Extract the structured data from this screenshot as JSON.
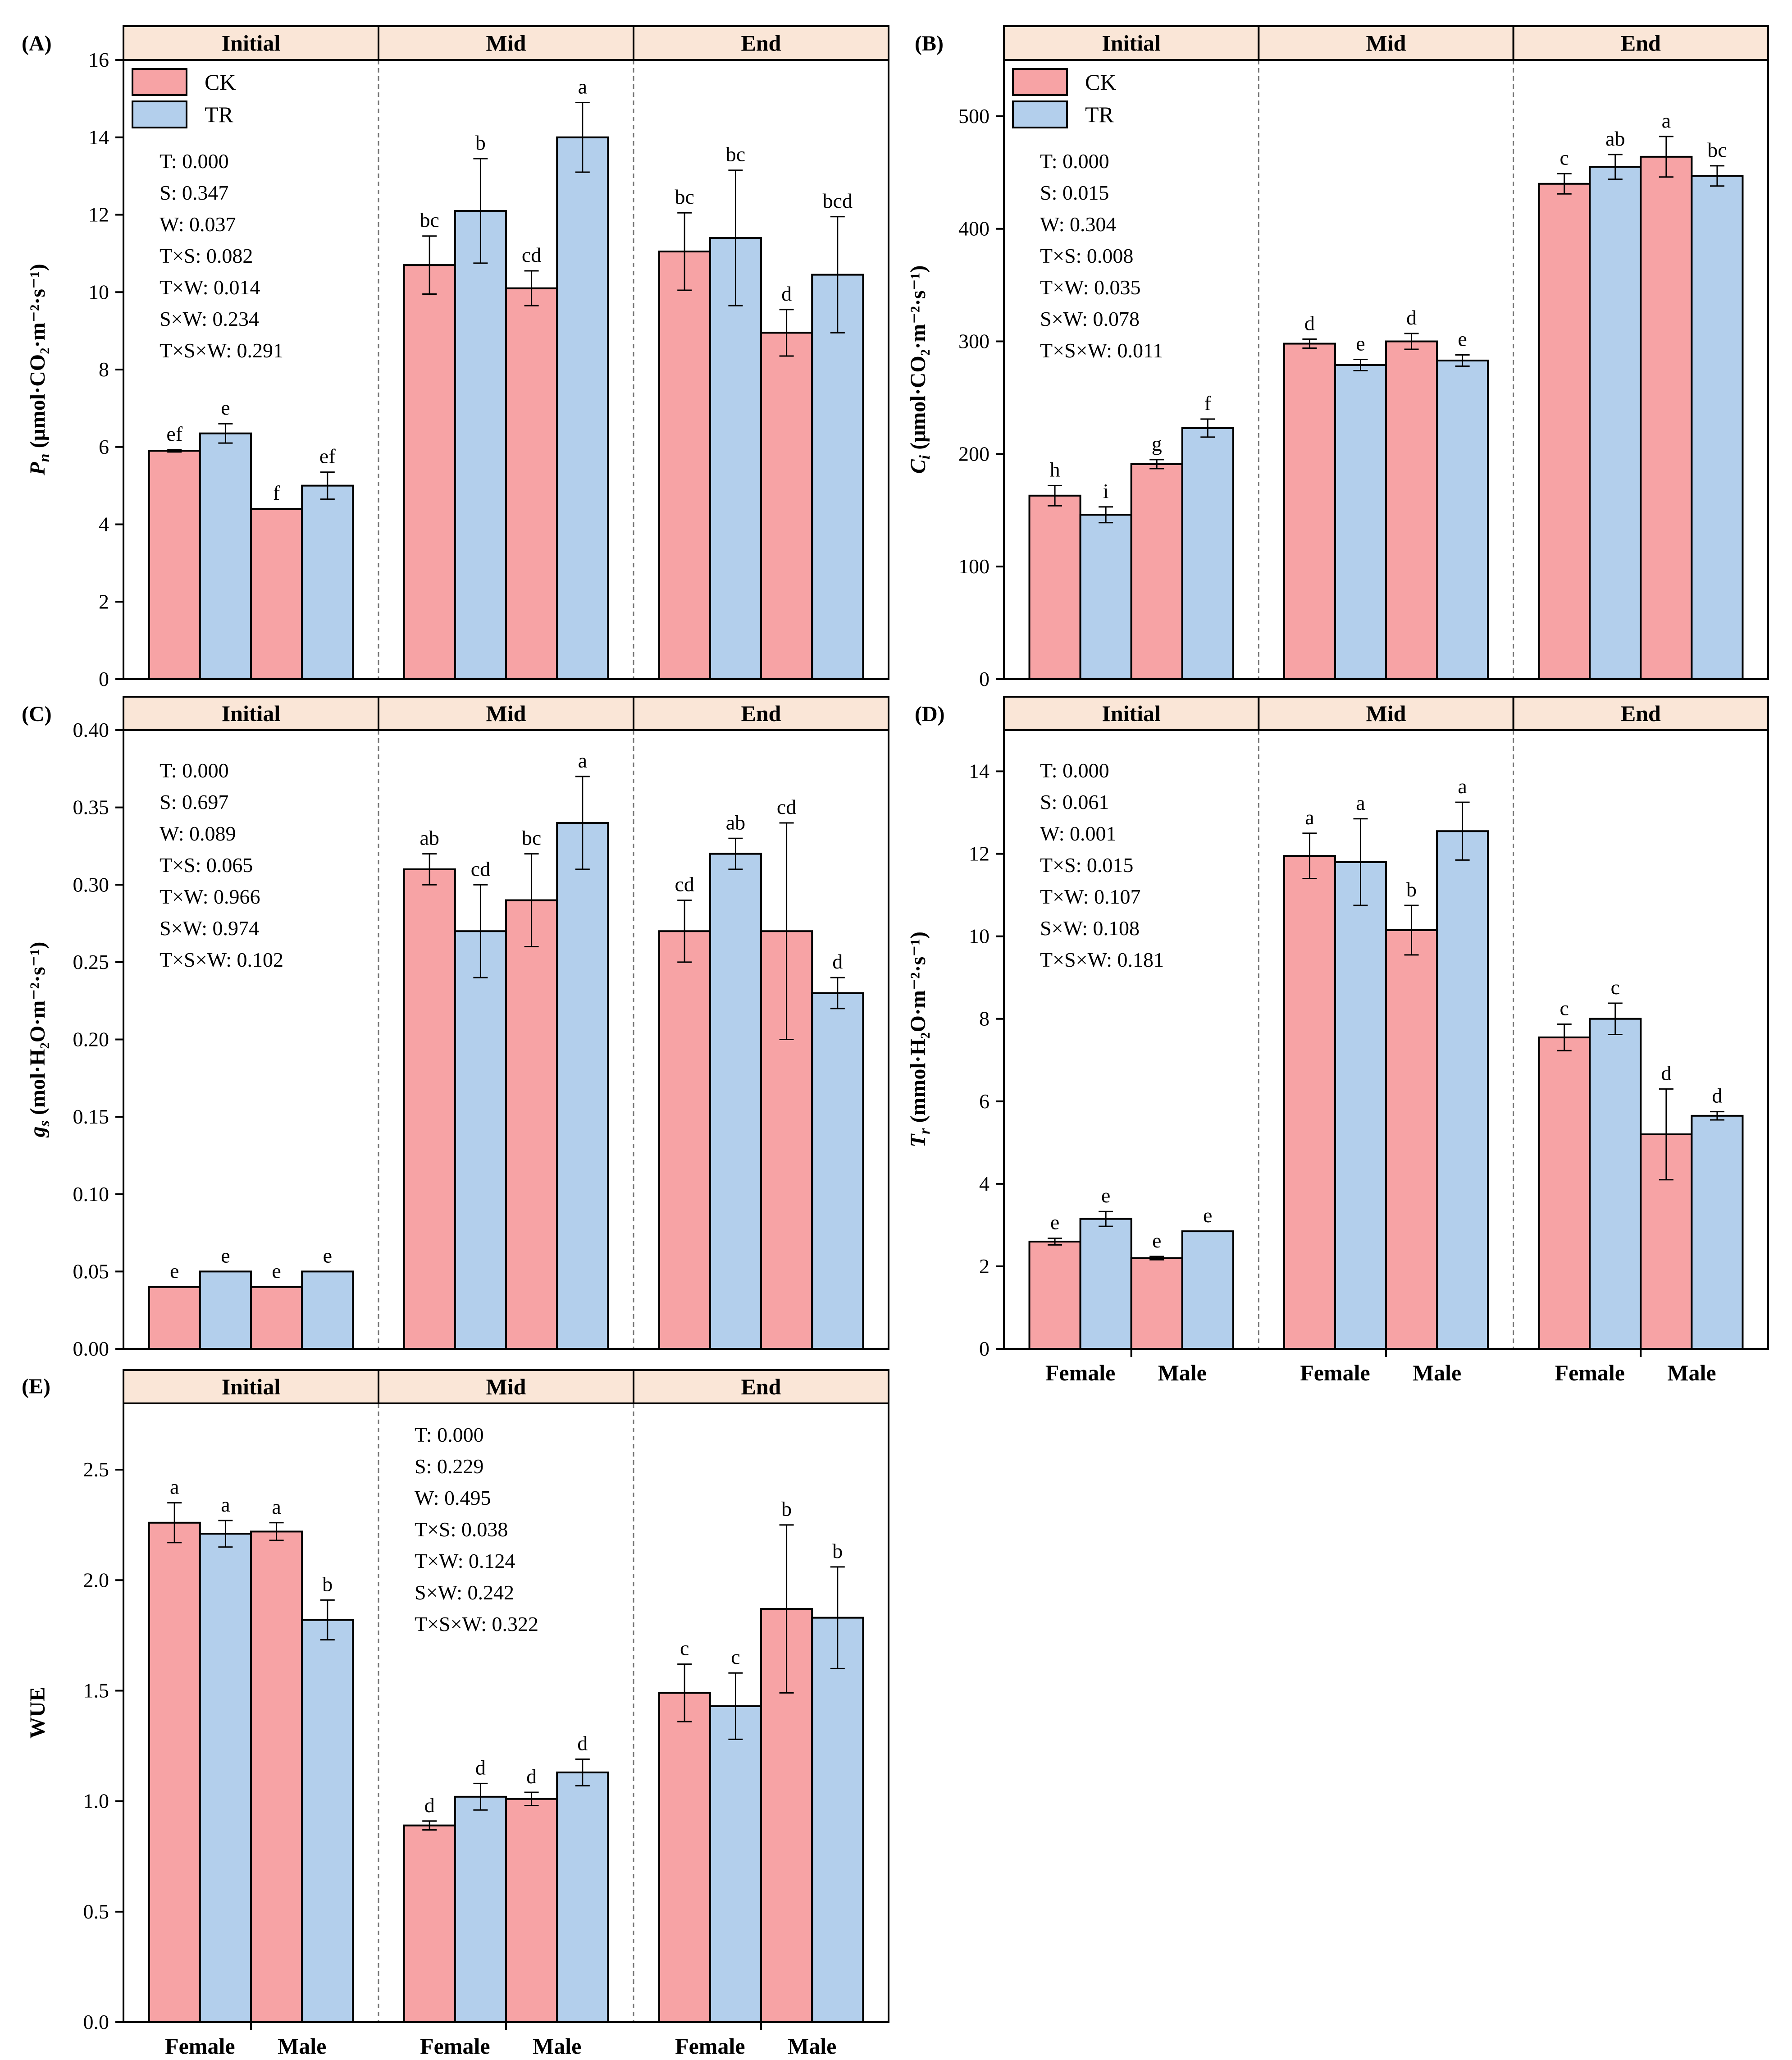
{
  "colors": {
    "CK": "#f7a3a5",
    "TR": "#b3cfec",
    "strip": "#fae6d7",
    "axis": "#000000",
    "divider": "#777777"
  },
  "legend": {
    "labels": [
      "CK",
      "TR"
    ]
  },
  "chart_data": [
    {
      "id": "A",
      "panel_label": "(A)",
      "type": "bar",
      "ylabel": {
        "prefix": "",
        "sym": "P",
        "sub": "n",
        "unit": " (μmol·CO₂·m⁻²·s⁻¹)"
      },
      "ylim": [
        0,
        16
      ],
      "yticks": [
        0,
        2,
        4,
        6,
        8,
        10,
        12,
        14,
        16
      ],
      "stages": [
        "Initial",
        "Mid",
        "End"
      ],
      "sexes": [
        "Female",
        "Male"
      ],
      "show_legend": true,
      "show_sex_labels": false,
      "stats": [
        "T: 0.000",
        "S: 0.347",
        "W: 0.037",
        "T×S: 0.082",
        "T×W: 0.014",
        "S×W: 0.234",
        "T×S×W: 0.291"
      ],
      "stats_stage": 0,
      "bars": [
        [
          [
            5.9,
            0.03,
            "ef"
          ],
          [
            6.35,
            0.25,
            "e"
          ],
          [
            4.4,
            0.0,
            "f"
          ],
          [
            5.0,
            0.35,
            "ef"
          ]
        ],
        [
          [
            10.7,
            0.75,
            "bc"
          ],
          [
            12.1,
            1.35,
            "b"
          ],
          [
            10.1,
            0.45,
            "cd"
          ],
          [
            14.0,
            0.9,
            "a"
          ]
        ],
        [
          [
            11.05,
            1.0,
            "bc"
          ],
          [
            11.4,
            1.75,
            "bc"
          ],
          [
            8.95,
            0.6,
            "d"
          ],
          [
            10.45,
            1.5,
            "bcd"
          ]
        ]
      ]
    },
    {
      "id": "B",
      "panel_label": "(B)",
      "type": "bar",
      "ylabel": {
        "prefix": "",
        "sym": "C",
        "sub": "i",
        "unit": " (μmol·CO₂·m⁻²·s⁻¹)"
      },
      "ylim": [
        0,
        550
      ],
      "yticks": [
        0,
        100,
        200,
        300,
        400,
        500
      ],
      "stages": [
        "Initial",
        "Mid",
        "End"
      ],
      "sexes": [
        "Female",
        "Male"
      ],
      "show_legend": true,
      "show_sex_labels": false,
      "stats": [
        "T: 0.000",
        "S: 0.015",
        "W: 0.304",
        "T×S: 0.008",
        "T×W: 0.035",
        "S×W: 0.078",
        "T×S×W: 0.011"
      ],
      "stats_stage": 0,
      "bars": [
        [
          [
            163,
            9,
            "h"
          ],
          [
            146,
            7,
            "i"
          ],
          [
            191,
            4,
            "g"
          ],
          [
            223,
            8,
            "f"
          ]
        ],
        [
          [
            298,
            4,
            "d"
          ],
          [
            279,
            5,
            "e"
          ],
          [
            300,
            7,
            "d"
          ],
          [
            283,
            5,
            "e"
          ]
        ],
        [
          [
            440,
            9,
            "c"
          ],
          [
            455,
            11,
            "ab"
          ],
          [
            464,
            18,
            "a"
          ],
          [
            447,
            9,
            "bc"
          ]
        ]
      ]
    },
    {
      "id": "C",
      "panel_label": "(C)",
      "type": "bar",
      "ylabel": {
        "prefix": "",
        "sym": "g",
        "sub": "s",
        "unit": " (mol·H₂O·m⁻²·s⁻¹)"
      },
      "ylim": [
        0,
        0.4
      ],
      "yticks": [
        0,
        0.05,
        0.1,
        0.15,
        0.2,
        0.25,
        0.3,
        0.35,
        0.4
      ],
      "decimals": 2,
      "stages": [
        "Initial",
        "Mid",
        "End"
      ],
      "sexes": [
        "Female",
        "Male"
      ],
      "show_legend": false,
      "show_sex_labels": false,
      "stats": [
        "T: 0.000",
        "S: 0.697",
        "W: 0.089",
        "T×S: 0.065",
        "T×W: 0.966",
        "S×W: 0.974",
        "T×S×W: 0.102"
      ],
      "stats_stage": 0,
      "bars": [
        [
          [
            0.04,
            0,
            "e"
          ],
          [
            0.05,
            0,
            "e"
          ],
          [
            0.04,
            0,
            "e"
          ],
          [
            0.05,
            0,
            "e"
          ]
        ],
        [
          [
            0.31,
            0.01,
            "ab"
          ],
          [
            0.27,
            0.03,
            "cd"
          ],
          [
            0.29,
            0.03,
            "bc"
          ],
          [
            0.34,
            0.03,
            "a"
          ]
        ],
        [
          [
            0.27,
            0.02,
            "cd"
          ],
          [
            0.32,
            0.01,
            "ab"
          ],
          [
            0.27,
            0.07,
            "cd"
          ],
          [
            0.23,
            0.01,
            "d"
          ]
        ]
      ]
    },
    {
      "id": "D",
      "panel_label": "(D)",
      "type": "bar",
      "ylabel": {
        "prefix": "",
        "sym": "T",
        "sub": "r",
        "unit": " (mmol·H₂O·m⁻²·s⁻¹)"
      },
      "ylim": [
        0,
        15
      ],
      "yticks": [
        0,
        2,
        4,
        6,
        8,
        10,
        12,
        14
      ],
      "stages": [
        "Initial",
        "Mid",
        "End"
      ],
      "sexes": [
        "Female",
        "Male"
      ],
      "show_legend": false,
      "show_sex_labels": true,
      "stats": [
        "T: 0.000",
        "S: 0.061",
        "W: 0.001",
        "T×S: 0.015",
        "T×W: 0.107",
        "S×W: 0.108",
        "T×S×W: 0.181"
      ],
      "stats_stage": 0,
      "bars": [
        [
          [
            2.6,
            0.08,
            "e"
          ],
          [
            3.15,
            0.18,
            "e"
          ],
          [
            2.2,
            0.04,
            "e"
          ],
          [
            2.85,
            0.0,
            "e"
          ]
        ],
        [
          [
            11.95,
            0.55,
            "a"
          ],
          [
            11.8,
            1.05,
            "a"
          ],
          [
            10.15,
            0.6,
            "b"
          ],
          [
            12.55,
            0.7,
            "a"
          ]
        ],
        [
          [
            7.55,
            0.32,
            "c"
          ],
          [
            8.0,
            0.38,
            "c"
          ],
          [
            5.2,
            1.1,
            "d"
          ],
          [
            5.65,
            0.1,
            "d"
          ]
        ]
      ]
    },
    {
      "id": "E",
      "panel_label": "(E)",
      "type": "bar",
      "ylabel": {
        "prefix": "WUE",
        "sym": "",
        "sub": "",
        "unit": ""
      },
      "ylim": [
        0,
        2.8
      ],
      "yticks": [
        0,
        0.5,
        1.0,
        1.5,
        2.0,
        2.5
      ],
      "decimals": 1,
      "stages": [
        "Initial",
        "Mid",
        "End"
      ],
      "sexes": [
        "Female",
        "Male"
      ],
      "show_legend": false,
      "show_sex_labels": true,
      "stats": [
        "T: 0.000",
        "S: 0.229",
        "W: 0.495",
        "T×S: 0.038",
        "T×W: 0.124",
        "S×W: 0.242",
        "T×S×W: 0.322"
      ],
      "stats_stage": 1,
      "bars": [
        [
          [
            2.26,
            0.09,
            "a"
          ],
          [
            2.21,
            0.06,
            "a"
          ],
          [
            2.22,
            0.04,
            "a"
          ],
          [
            1.82,
            0.09,
            "b"
          ]
        ],
        [
          [
            0.89,
            0.02,
            "d"
          ],
          [
            1.02,
            0.06,
            "d"
          ],
          [
            1.01,
            0.03,
            "d"
          ],
          [
            1.13,
            0.06,
            "d"
          ]
        ],
        [
          [
            1.49,
            0.13,
            "c"
          ],
          [
            1.43,
            0.15,
            "c"
          ],
          [
            1.87,
            0.38,
            "b"
          ],
          [
            1.83,
            0.23,
            "b"
          ]
        ]
      ]
    }
  ]
}
